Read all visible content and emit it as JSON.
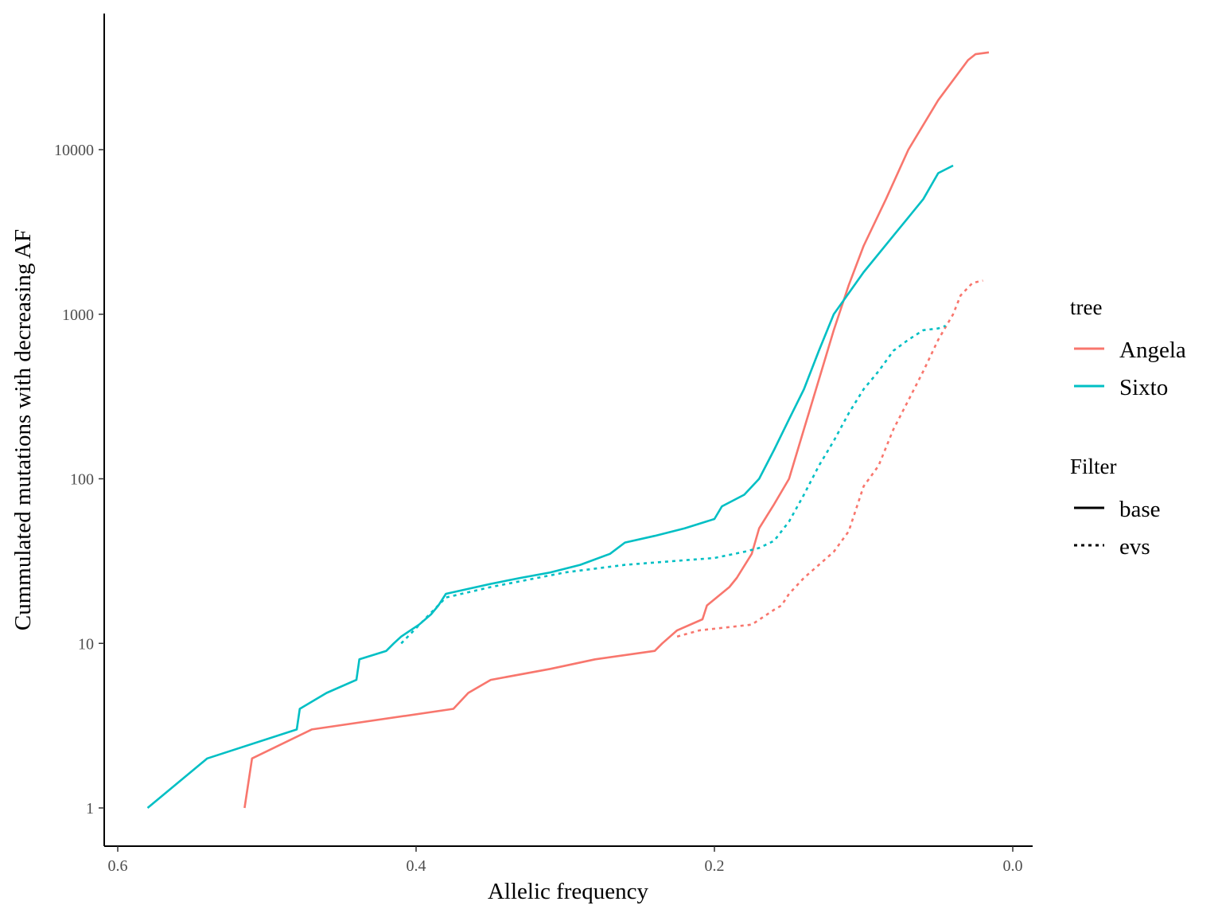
{
  "chart_data": {
    "type": "line",
    "title": "",
    "xlabel": "Allelic frequency",
    "ylabel": "Cummulated mutations with decreasing AF",
    "x_reversed": true,
    "xlim": [
      0.6,
      0.0
    ],
    "y_scale": "log10",
    "ylim": [
      0.6,
      50000
    ],
    "x_ticks": [
      {
        "value": 0.6,
        "label": "0.6"
      },
      {
        "value": 0.4,
        "label": "0.4"
      },
      {
        "value": 0.2,
        "label": "0.2"
      },
      {
        "value": 0.0,
        "label": "0.0"
      }
    ],
    "y_ticks": [
      {
        "value": 1,
        "label": "1"
      },
      {
        "value": 10,
        "label": "10"
      },
      {
        "value": 100,
        "label": "100"
      },
      {
        "value": 1000,
        "label": "1000"
      },
      {
        "value": 10000,
        "label": "10000"
      }
    ],
    "grid": false,
    "legend_position": "right",
    "legend": {
      "color_title": "tree",
      "color_entries": [
        {
          "label": "Angela",
          "color": "#F8766D"
        },
        {
          "label": "Sixto",
          "color": "#00BFC4"
        }
      ],
      "linetype_title": "Filter",
      "linetype_entries": [
        {
          "label": "base",
          "dash": "solid"
        },
        {
          "label": "evs",
          "dash": "dotted"
        }
      ]
    },
    "series": [
      {
        "tree": "Angela",
        "filter": "base",
        "color": "#F8766D",
        "dash": "solid",
        "points": [
          [
            0.515,
            1
          ],
          [
            0.51,
            2
          ],
          [
            0.47,
            3
          ],
          [
            0.375,
            4
          ],
          [
            0.365,
            5
          ],
          [
            0.35,
            6
          ],
          [
            0.31,
            7
          ],
          [
            0.28,
            8
          ],
          [
            0.24,
            9
          ],
          [
            0.235,
            10
          ],
          [
            0.225,
            12
          ],
          [
            0.208,
            14
          ],
          [
            0.205,
            17
          ],
          [
            0.19,
            22
          ],
          [
            0.185,
            25
          ],
          [
            0.175,
            35
          ],
          [
            0.17,
            50
          ],
          [
            0.16,
            70
          ],
          [
            0.15,
            100
          ],
          [
            0.14,
            200
          ],
          [
            0.13,
            400
          ],
          [
            0.12,
            800
          ],
          [
            0.11,
            1500
          ],
          [
            0.1,
            2600
          ],
          [
            0.085,
            5000
          ],
          [
            0.07,
            10000
          ],
          [
            0.05,
            20000
          ],
          [
            0.03,
            35000
          ],
          [
            0.025,
            38000
          ],
          [
            0.016,
            39000
          ]
        ]
      },
      {
        "tree": "Angela",
        "filter": "evs",
        "color": "#F8766D",
        "dash": "dotted",
        "points": [
          [
            0.225,
            11
          ],
          [
            0.21,
            12
          ],
          [
            0.175,
            13
          ],
          [
            0.16,
            16
          ],
          [
            0.155,
            17
          ],
          [
            0.15,
            20
          ],
          [
            0.14,
            25
          ],
          [
            0.13,
            30
          ],
          [
            0.12,
            36
          ],
          [
            0.11,
            48
          ],
          [
            0.1,
            90
          ],
          [
            0.09,
            120
          ],
          [
            0.08,
            200
          ],
          [
            0.07,
            300
          ],
          [
            0.06,
            450
          ],
          [
            0.05,
            700
          ],
          [
            0.04,
            1000
          ],
          [
            0.035,
            1300
          ],
          [
            0.027,
            1550
          ],
          [
            0.02,
            1600
          ]
        ]
      },
      {
        "tree": "Sixto",
        "filter": "base",
        "color": "#00BFC4",
        "dash": "solid",
        "points": [
          [
            0.58,
            1
          ],
          [
            0.54,
            2
          ],
          [
            0.48,
            3
          ],
          [
            0.478,
            4
          ],
          [
            0.46,
            5
          ],
          [
            0.44,
            6
          ],
          [
            0.438,
            8
          ],
          [
            0.42,
            9
          ],
          [
            0.415,
            10
          ],
          [
            0.41,
            11
          ],
          [
            0.398,
            13
          ],
          [
            0.39,
            15
          ],
          [
            0.385,
            17
          ],
          [
            0.38,
            20
          ],
          [
            0.35,
            23
          ],
          [
            0.33,
            25
          ],
          [
            0.31,
            27
          ],
          [
            0.29,
            30
          ],
          [
            0.27,
            35
          ],
          [
            0.26,
            41
          ],
          [
            0.24,
            45
          ],
          [
            0.22,
            50
          ],
          [
            0.2,
            57
          ],
          [
            0.195,
            68
          ],
          [
            0.18,
            80
          ],
          [
            0.17,
            100
          ],
          [
            0.16,
            150
          ],
          [
            0.15,
            230
          ],
          [
            0.14,
            350
          ],
          [
            0.13,
            600
          ],
          [
            0.12,
            1000
          ],
          [
            0.1,
            1800
          ],
          [
            0.08,
            3000
          ],
          [
            0.06,
            5000
          ],
          [
            0.05,
            7200
          ],
          [
            0.04,
            8000
          ]
        ]
      },
      {
        "tree": "Sixto",
        "filter": "evs",
        "color": "#00BFC4",
        "dash": "dotted",
        "points": [
          [
            0.41,
            10
          ],
          [
            0.38,
            19
          ],
          [
            0.35,
            22
          ],
          [
            0.3,
            27
          ],
          [
            0.26,
            30
          ],
          [
            0.22,
            32
          ],
          [
            0.2,
            33
          ],
          [
            0.18,
            36
          ],
          [
            0.17,
            38
          ],
          [
            0.16,
            42
          ],
          [
            0.15,
            55
          ],
          [
            0.14,
            80
          ],
          [
            0.13,
            120
          ],
          [
            0.12,
            170
          ],
          [
            0.11,
            250
          ],
          [
            0.1,
            350
          ],
          [
            0.09,
            450
          ],
          [
            0.08,
            600
          ],
          [
            0.07,
            700
          ],
          [
            0.06,
            800
          ],
          [
            0.05,
            820
          ],
          [
            0.045,
            850
          ]
        ]
      }
    ]
  }
}
